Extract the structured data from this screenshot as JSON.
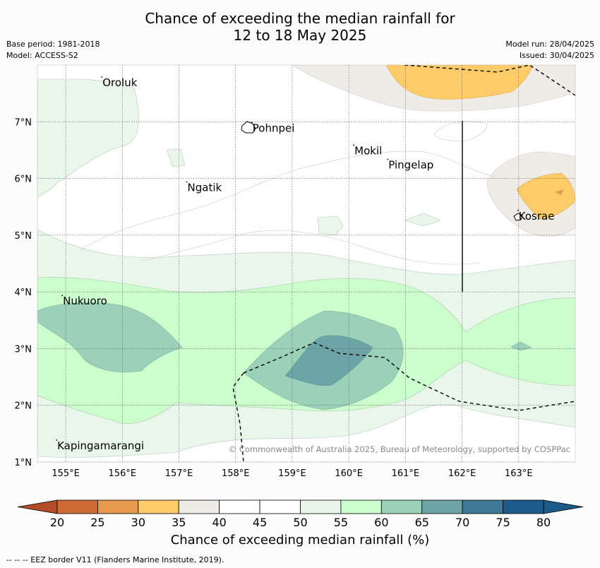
{
  "title_line1": "Chance of exceeding the median rainfall for",
  "title_line2": "12 to 18 May 2025",
  "meta": {
    "base_period": "Base period: 1981-2018",
    "model": "Model: ACCESS-S2",
    "model_run": "Model run: 28/04/2025",
    "issued": "Issued: 30/04/2025"
  },
  "map": {
    "lon_range": [
      154.5,
      164.0
    ],
    "lat_range": [
      1.0,
      8.0
    ],
    "lon_ticks": [
      "155°E",
      "156°E",
      "157°E",
      "158°E",
      "159°E",
      "160°E",
      "161°E",
      "162°E",
      "163°E"
    ],
    "lat_ticks": [
      "1°N",
      "2°N",
      "3°N",
      "4°N",
      "5°N",
      "6°N",
      "7°N"
    ],
    "places": [
      {
        "name": "Oroluk",
        "lon": 155.65,
        "lat": 7.65
      },
      {
        "name": "Pohnpei",
        "lon": 158.3,
        "lat": 6.85
      },
      {
        "name": "Mokil",
        "lon": 160.1,
        "lat": 6.45
      },
      {
        "name": "Pingelap",
        "lon": 160.7,
        "lat": 6.2
      },
      {
        "name": "Ngatik",
        "lon": 157.15,
        "lat": 5.8
      },
      {
        "name": "Kosrae",
        "lon": 163.0,
        "lat": 5.3
      },
      {
        "name": "Nukuoro",
        "lon": 154.95,
        "lat": 3.8
      },
      {
        "name": "Kapingamarangi",
        "lon": 154.85,
        "lat": 1.25
      }
    ],
    "copyright": "© Commonwealth of Australia 2025, Bureau of Meteorology, supported by COSPPac"
  },
  "colorbar": {
    "ticks": [
      "20",
      "25",
      "30",
      "35",
      "40",
      "45",
      "50",
      "55",
      "60",
      "65",
      "70",
      "75",
      "80"
    ],
    "colors": [
      "#b44d27",
      "#cd6a35",
      "#e59a4e",
      "#fdcc68",
      "#efece8",
      "#ffffff",
      "#ffffff",
      "#e8f5e8",
      "#ccfdcc",
      "#9bd0b9",
      "#6da5a6",
      "#3f7996",
      "#1b5a8a"
    ],
    "label": "Chance of exceeding median rainfall (%)"
  },
  "footnote": "--  --  -- EEZ border V11 (Flanders Marine Institute, 2019)."
}
